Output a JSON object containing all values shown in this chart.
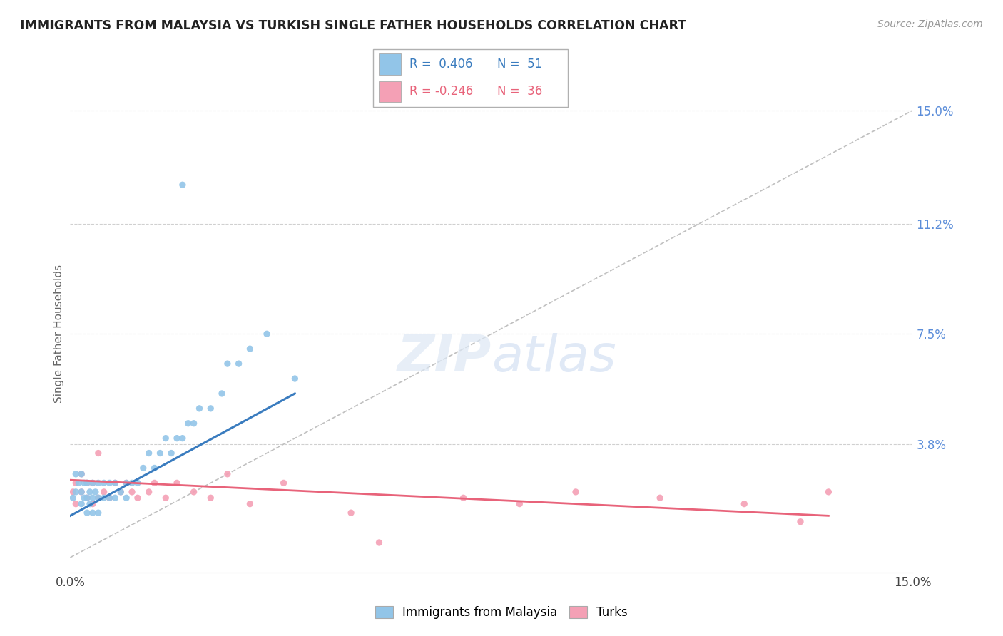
{
  "title": "IMMIGRANTS FROM MALAYSIA VS TURKISH SINGLE FATHER HOUSEHOLDS CORRELATION CHART",
  "source": "Source: ZipAtlas.com",
  "ylabel": "Single Father Households",
  "legend1_r": "R =  0.406",
  "legend1_n": "N =  51",
  "legend2_r": "R = -0.246",
  "legend2_n": "N =  36",
  "legend1_label": "Immigrants from Malaysia",
  "legend2_label": "Turks",
  "xlim": [
    0.0,
    0.15
  ],
  "ylim": [
    -0.005,
    0.155
  ],
  "yticks": [
    0.0,
    0.038,
    0.075,
    0.112,
    0.15
  ],
  "ytick_labels": [
    "",
    "3.8%",
    "7.5%",
    "11.2%",
    "15.0%"
  ],
  "blue_color": "#92c5e8",
  "pink_color": "#f4a0b5",
  "blue_line_color": "#3a7cbf",
  "pink_line_color": "#e8637a",
  "title_color": "#222222",
  "axis_label_color": "#5b8dd9",
  "grid_color": "#d0d0d0",
  "ref_line_color": "#c0c0c0",
  "blue_scatter_x": [
    0.0005,
    0.001,
    0.001,
    0.0015,
    0.002,
    0.002,
    0.002,
    0.0025,
    0.0025,
    0.003,
    0.003,
    0.003,
    0.0035,
    0.0035,
    0.004,
    0.004,
    0.004,
    0.0045,
    0.005,
    0.005,
    0.005,
    0.006,
    0.006,
    0.007,
    0.007,
    0.008,
    0.008,
    0.009,
    0.01,
    0.01,
    0.011,
    0.012,
    0.013,
    0.014,
    0.015,
    0.016,
    0.017,
    0.018,
    0.019,
    0.02,
    0.021,
    0.022,
    0.023,
    0.025,
    0.027,
    0.028,
    0.03,
    0.032,
    0.035,
    0.04,
    0.02
  ],
  "blue_scatter_y": [
    0.02,
    0.022,
    0.028,
    0.025,
    0.018,
    0.022,
    0.028,
    0.02,
    0.025,
    0.015,
    0.02,
    0.025,
    0.018,
    0.022,
    0.015,
    0.02,
    0.025,
    0.022,
    0.015,
    0.02,
    0.025,
    0.02,
    0.025,
    0.02,
    0.025,
    0.02,
    0.025,
    0.022,
    0.02,
    0.025,
    0.025,
    0.025,
    0.03,
    0.035,
    0.03,
    0.035,
    0.04,
    0.035,
    0.04,
    0.04,
    0.045,
    0.045,
    0.05,
    0.05,
    0.055,
    0.065,
    0.065,
    0.07,
    0.075,
    0.06,
    0.125
  ],
  "pink_scatter_x": [
    0.0005,
    0.001,
    0.001,
    0.002,
    0.002,
    0.003,
    0.003,
    0.004,
    0.004,
    0.005,
    0.005,
    0.006,
    0.007,
    0.008,
    0.009,
    0.01,
    0.011,
    0.012,
    0.014,
    0.015,
    0.017,
    0.019,
    0.022,
    0.025,
    0.028,
    0.032,
    0.038,
    0.05,
    0.055,
    0.07,
    0.08,
    0.09,
    0.105,
    0.12,
    0.13,
    0.135
  ],
  "pink_scatter_y": [
    0.022,
    0.018,
    0.025,
    0.022,
    0.028,
    0.02,
    0.025,
    0.018,
    0.025,
    0.02,
    0.035,
    0.022,
    0.02,
    0.025,
    0.022,
    0.025,
    0.022,
    0.02,
    0.022,
    0.025,
    0.02,
    0.025,
    0.022,
    0.02,
    0.028,
    0.018,
    0.025,
    0.015,
    0.005,
    0.02,
    0.018,
    0.022,
    0.02,
    0.018,
    0.012,
    0.022
  ],
  "blue_trend_x": [
    0.0,
    0.04
  ],
  "blue_trend_y": [
    0.014,
    0.055
  ],
  "pink_trend_x": [
    0.0,
    0.135
  ],
  "pink_trend_y": [
    0.026,
    0.014
  ]
}
